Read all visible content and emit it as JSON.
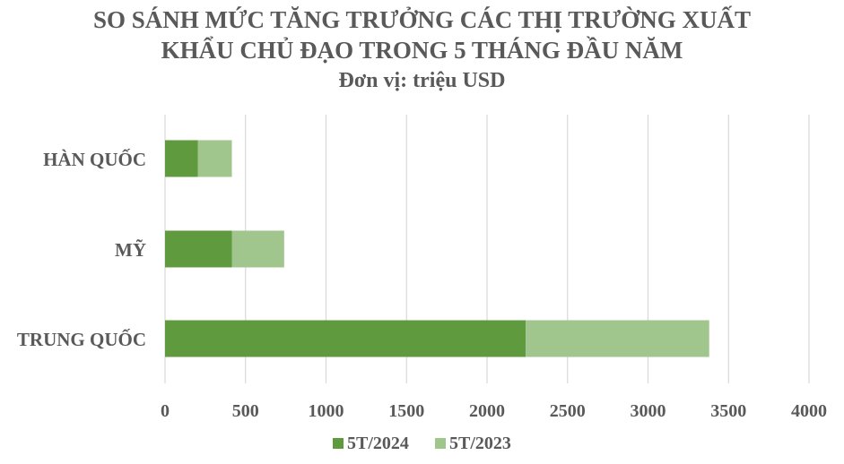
{
  "chart_data": {
    "type": "bar",
    "orientation": "horizontal",
    "stacked": true,
    "title_lines": [
      "SO SÁNH MỨC TĂNG TRƯỞNG CÁC THỊ TRƯỜNG XUẤT",
      "KHẨU CHỦ ĐẠO TRONG 5 THÁNG ĐẦU NĂM"
    ],
    "subtitle": "Đơn vị: triệu USD",
    "categories": [
      "HÀN QUỐC",
      "MỸ",
      "TRUNG QUỐC"
    ],
    "series": [
      {
        "name": "5T/2024",
        "color": "#5f9a3f",
        "values": [
          205,
          415,
          2240
        ]
      },
      {
        "name": "5T/2023",
        "color": "#a0c68e",
        "values": [
          210,
          325,
          1140
        ]
      }
    ],
    "xlim": [
      0,
      4000
    ],
    "xticks": [
      0,
      500,
      1000,
      1500,
      2000,
      2500,
      3000,
      3500,
      4000
    ],
    "grid": true,
    "legend_position": "bottom"
  }
}
